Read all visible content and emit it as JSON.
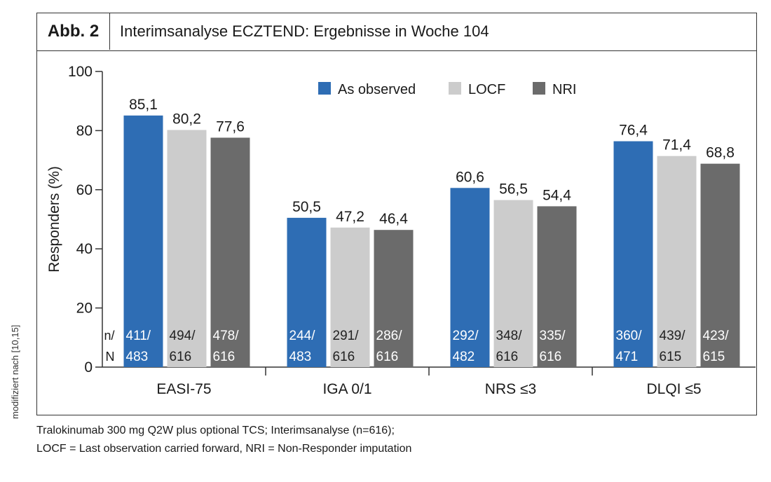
{
  "figure": {
    "number": "Abb. 2",
    "title": "Interimsanalyse ECZTEND: Ergebnisse in Woche 104",
    "source_note": "modifiziert nach [10,15]",
    "footnote_lines": [
      "Tralokinumab 300 mg Q2W plus optional TCS; Interimsanalyse (n=616);",
      "LOCF = Last observation carried forward, NRI = Non-Responder imputation"
    ]
  },
  "chart_data": {
    "type": "bar",
    "title": "Interimsanalyse ECZTEND: Ergebnisse in Woche 104",
    "ylabel": "Responders (%)",
    "xlabel": "",
    "ylim": [
      0,
      100
    ],
    "yticks": [
      "0",
      "20",
      "40",
      "60",
      "80",
      "100"
    ],
    "categories": [
      "EASI-75",
      "IGA 0/1",
      "NRS ≤3",
      "DLQI ≤5"
    ],
    "series": [
      {
        "name": "As observed",
        "color": "#2e6db4",
        "values": [
          85.1,
          50.5,
          60.6,
          76.4
        ],
        "labels": [
          "85,1",
          "50,5",
          "60,6",
          "76,4"
        ],
        "counts_top": [
          "411/",
          "244/",
          "292/",
          "360/"
        ],
        "counts_bottom": [
          "483",
          "483",
          "482",
          "471"
        ]
      },
      {
        "name": "LOCF",
        "color": "#cccccc",
        "values": [
          80.2,
          47.2,
          56.5,
          71.4
        ],
        "labels": [
          "80,2",
          "47,2",
          "56,5",
          "71,4"
        ],
        "counts_top": [
          "494/",
          "291/",
          "348/",
          "439/"
        ],
        "counts_bottom": [
          "616",
          "616",
          "616",
          "615"
        ]
      },
      {
        "name": "NRI",
        "color": "#6b6b6b",
        "values": [
          77.6,
          46.4,
          54.4,
          68.8
        ],
        "labels": [
          "77,6",
          "46,4",
          "54,4",
          "68,8"
        ],
        "counts_top": [
          "478/",
          "286/",
          "335/",
          "423/"
        ],
        "counts_bottom": [
          "616",
          "616",
          "616",
          "615"
        ]
      }
    ],
    "count_row_label": [
      "n/",
      "N"
    ],
    "count_text_colors": [
      "#ffffff",
      "#222222",
      "#ffffff"
    ],
    "legend_position": "top-right",
    "grid": false
  }
}
